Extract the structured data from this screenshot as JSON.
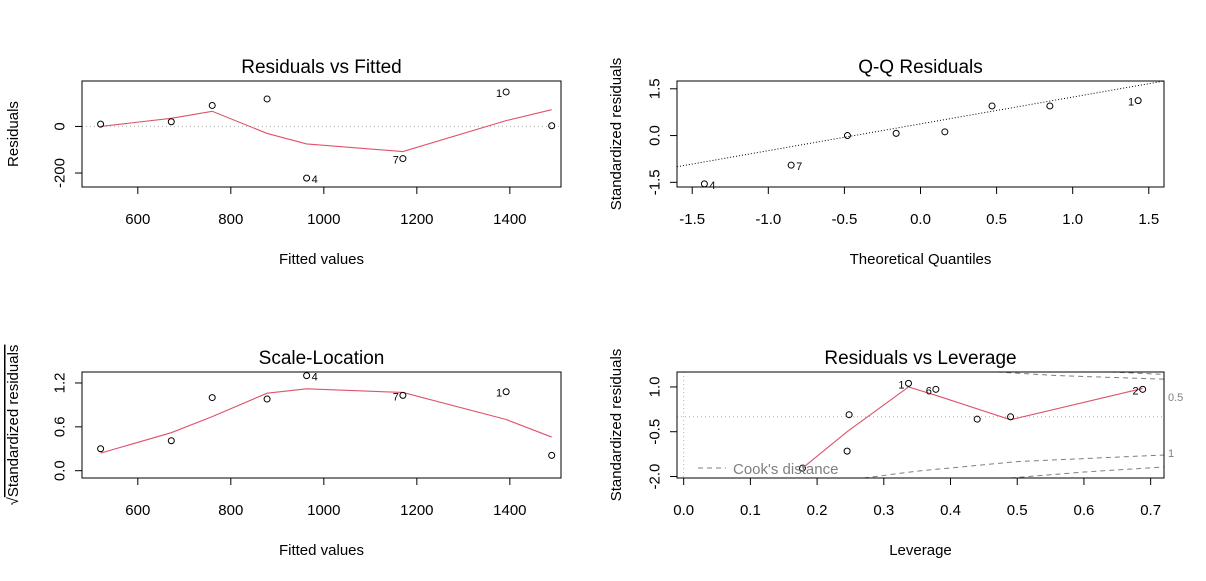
{
  "chart_data": [
    {
      "type": "scatter",
      "title": "Residuals vs Fitted",
      "xlabel": "Fitted values",
      "ylabel": "Residuals",
      "xlim": [
        480,
        1510
      ],
      "ylim": [
        -260,
        195
      ],
      "xticks": [
        600,
        800,
        1000,
        1200,
        1400
      ],
      "yticks": [
        -200,
        0
      ],
      "ytick_labels": [
        "-200",
        "0"
      ],
      "reference_line": 0,
      "points": [
        {
          "x": 520,
          "y": 10,
          "label": ""
        },
        {
          "x": 672,
          "y": 20,
          "label": ""
        },
        {
          "x": 760,
          "y": 90,
          "label": ""
        },
        {
          "x": 878,
          "y": 118,
          "label": ""
        },
        {
          "x": 963,
          "y": -222,
          "label": "4"
        },
        {
          "x": 1170,
          "y": -138,
          "label": "7"
        },
        {
          "x": 1392,
          "y": 148,
          "label": "1"
        },
        {
          "x": 1490,
          "y": 3,
          "label": ""
        }
      ],
      "smooth": [
        [
          520,
          0
        ],
        [
          672,
          35
        ],
        [
          760,
          65
        ],
        [
          878,
          -30
        ],
        [
          963,
          -75
        ],
        [
          1170,
          -108
        ],
        [
          1392,
          25
        ],
        [
          1490,
          72
        ]
      ]
    },
    {
      "type": "scatter",
      "title": "Q-Q Residuals",
      "xlabel": "Theoretical Quantiles",
      "ylabel": "Standardized residuals",
      "xlim": [
        -1.6,
        1.6
      ],
      "ylim": [
        -1.65,
        1.75
      ],
      "xticks": [
        -1.5,
        -1.0,
        -0.5,
        0.0,
        0.5,
        1.0,
        1.5
      ],
      "xtick_labels": [
        "-1.5",
        "-1.0",
        "-0.5",
        "0.0",
        "0.5",
        "1.0",
        "1.5"
      ],
      "yticks": [
        -1.5,
        0.0,
        1.5
      ],
      "ytick_labels": [
        "-1.5",
        "0.0",
        "1.5"
      ],
      "points": [
        {
          "x": -1.42,
          "y": -1.55,
          "label": "4"
        },
        {
          "x": -0.85,
          "y": -0.95,
          "label": "7"
        },
        {
          "x": -0.48,
          "y": 0.0,
          "label": ""
        },
        {
          "x": -0.16,
          "y": 0.07,
          "label": ""
        },
        {
          "x": 0.16,
          "y": 0.12,
          "label": ""
        },
        {
          "x": 0.47,
          "y": 0.95,
          "label": ""
        },
        {
          "x": 0.85,
          "y": 0.95,
          "label": ""
        },
        {
          "x": 1.43,
          "y": 1.12,
          "label": "1"
        }
      ],
      "qq_line": [
        [
          -1.6,
          -1.0
        ],
        [
          1.6,
          1.75
        ]
      ]
    },
    {
      "type": "scatter",
      "title": "Scale-Location",
      "xlabel": "Fitted values",
      "ylabel": "Standardized residuals",
      "xlim": [
        480,
        1510
      ],
      "ylim": [
        -0.1,
        1.35
      ],
      "xticks": [
        600,
        800,
        1000,
        1200,
        1400
      ],
      "yticks": [
        0.0,
        0.6,
        1.2
      ],
      "ytick_labels": [
        "0.0",
        "0.6",
        "1.2"
      ],
      "points": [
        {
          "x": 520,
          "y": 0.3,
          "label": ""
        },
        {
          "x": 672,
          "y": 0.41,
          "label": ""
        },
        {
          "x": 760,
          "y": 1.0,
          "label": ""
        },
        {
          "x": 878,
          "y": 0.98,
          "label": ""
        },
        {
          "x": 963,
          "y": 1.3,
          "label": "4"
        },
        {
          "x": 1170,
          "y": 1.03,
          "label": "7"
        },
        {
          "x": 1392,
          "y": 1.08,
          "label": "1"
        },
        {
          "x": 1490,
          "y": 0.21,
          "label": ""
        }
      ],
      "smooth": [
        [
          520,
          0.24
        ],
        [
          672,
          0.52
        ],
        [
          760,
          0.74
        ],
        [
          878,
          1.06
        ],
        [
          963,
          1.12
        ],
        [
          1170,
          1.07
        ],
        [
          1392,
          0.7
        ],
        [
          1490,
          0.46
        ]
      ]
    },
    {
      "type": "scatter",
      "title": "Residuals vs Leverage",
      "xlabel": "Leverage",
      "ylabel": "Standardized residuals",
      "xlim": [
        -0.01,
        0.72
      ],
      "ylim": [
        -2.05,
        1.5
      ],
      "xticks": [
        0.0,
        0.1,
        0.2,
        0.3,
        0.4,
        0.5,
        0.6,
        0.7
      ],
      "xtick_labels": [
        "0.0",
        "0.1",
        "0.2",
        "0.3",
        "0.4",
        "0.5",
        "0.6",
        "0.7"
      ],
      "yticks": [
        -2.0,
        -0.5,
        1.0
      ],
      "ytick_labels": [
        "-2.0",
        "-0.5",
        "1.0"
      ],
      "reference_line": 0,
      "points": [
        {
          "x": 0.178,
          "y": -1.72,
          "label": ""
        },
        {
          "x": 0.245,
          "y": -1.15,
          "label": ""
        },
        {
          "x": 0.248,
          "y": 0.07,
          "label": ""
        },
        {
          "x": 0.337,
          "y": 1.12,
          "label": "1"
        },
        {
          "x": 0.378,
          "y": 0.92,
          "label": "6"
        },
        {
          "x": 0.44,
          "y": -0.08,
          "label": ""
        },
        {
          "x": 0.49,
          "y": 0.0,
          "label": ""
        },
        {
          "x": 0.688,
          "y": 0.92,
          "label": "2"
        }
      ],
      "smooth": [
        [
          0.178,
          -1.72
        ],
        [
          0.245,
          -0.5
        ],
        [
          0.337,
          1.0
        ],
        [
          0.378,
          0.72
        ],
        [
          0.49,
          -0.1
        ],
        [
          0.688,
          0.95
        ]
      ],
      "cooks_levels": [
        "0.5",
        "1"
      ],
      "legend": "Cook's distance",
      "legend_position": "bottom-left"
    }
  ]
}
